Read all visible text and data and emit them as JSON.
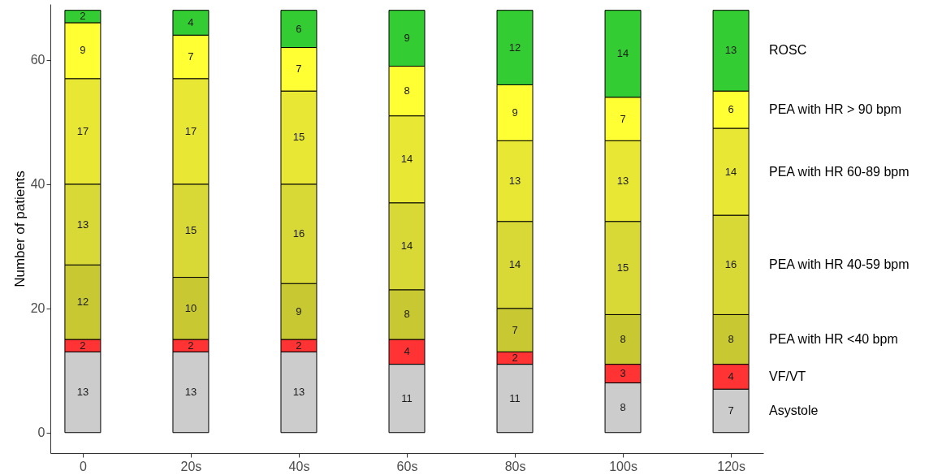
{
  "chart_data": {
    "type": "bar",
    "stacked": true,
    "data_labels": true,
    "ylabel": "Number of patients",
    "categories": [
      "0",
      "20s",
      "40s",
      "60s",
      "80s",
      "100s",
      "120s"
    ],
    "ylim": [
      -3.3,
      69
    ],
    "yticks": [
      0,
      20,
      40,
      60
    ],
    "series": [
      {
        "name": "Asystole",
        "color": "#cccccc",
        "values": [
          13,
          13,
          13,
          11,
          11,
          8,
          7
        ]
      },
      {
        "name": "VF/VT",
        "color": "#ff3333",
        "values": [
          2,
          2,
          2,
          4,
          2,
          3,
          4
        ]
      },
      {
        "name": "PEA with HR <40 bpm",
        "color": "#c8c832",
        "values": [
          12,
          10,
          9,
          8,
          7,
          8,
          8
        ]
      },
      {
        "name": "PEA with HR 40-59 bpm",
        "color": "#d8d836",
        "values": [
          13,
          15,
          16,
          14,
          14,
          15,
          16
        ]
      },
      {
        "name": "PEA with HR 60-89 bpm",
        "color": "#e8e834",
        "values": [
          17,
          17,
          15,
          14,
          13,
          13,
          14
        ]
      },
      {
        "name": "PEA with HR > 90 bpm",
        "color": "#ffff33",
        "values": [
          9,
          7,
          7,
          8,
          9,
          7,
          6
        ]
      },
      {
        "name": "ROSC",
        "color": "#33cc33",
        "values": [
          2,
          4,
          6,
          9,
          12,
          14,
          13
        ]
      }
    ]
  }
}
